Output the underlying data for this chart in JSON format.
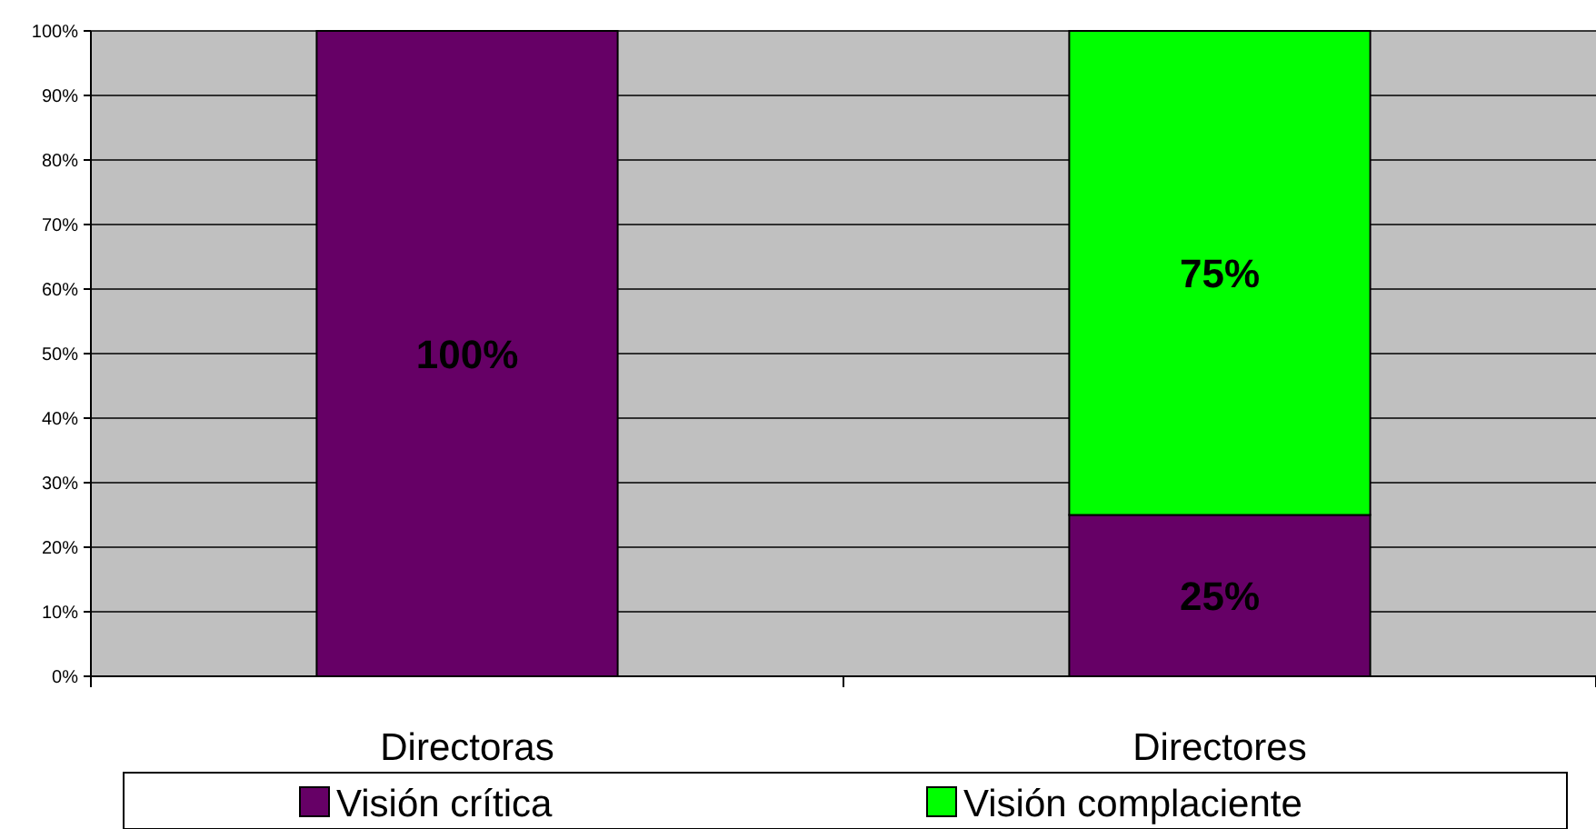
{
  "chart_data": {
    "type": "bar",
    "stacked": true,
    "categories": [
      "Directoras",
      "Directores"
    ],
    "series": [
      {
        "name": "Visión crítica",
        "color": "#660066",
        "values": [
          100,
          25
        ],
        "value_labels": [
          "100%",
          "25%"
        ]
      },
      {
        "name": "Visión complaciente",
        "color": "#00ff00",
        "values": [
          0,
          75
        ],
        "value_labels": [
          null,
          "75%"
        ]
      }
    ],
    "ylim": [
      0,
      100
    ],
    "yticks": [
      {
        "value": 0,
        "label": "0%"
      },
      {
        "value": 10,
        "label": "10%"
      },
      {
        "value": 20,
        "label": "20%"
      },
      {
        "value": 30,
        "label": "30%"
      },
      {
        "value": 40,
        "label": "40%"
      },
      {
        "value": 50,
        "label": "50%"
      },
      {
        "value": 60,
        "label": "60%"
      },
      {
        "value": 70,
        "label": "70%"
      },
      {
        "value": 80,
        "label": "80%"
      },
      {
        "value": 90,
        "label": "90%"
      },
      {
        "value": 100,
        "label": "100%"
      }
    ],
    "grid": "y",
    "legend": "bottom"
  }
}
